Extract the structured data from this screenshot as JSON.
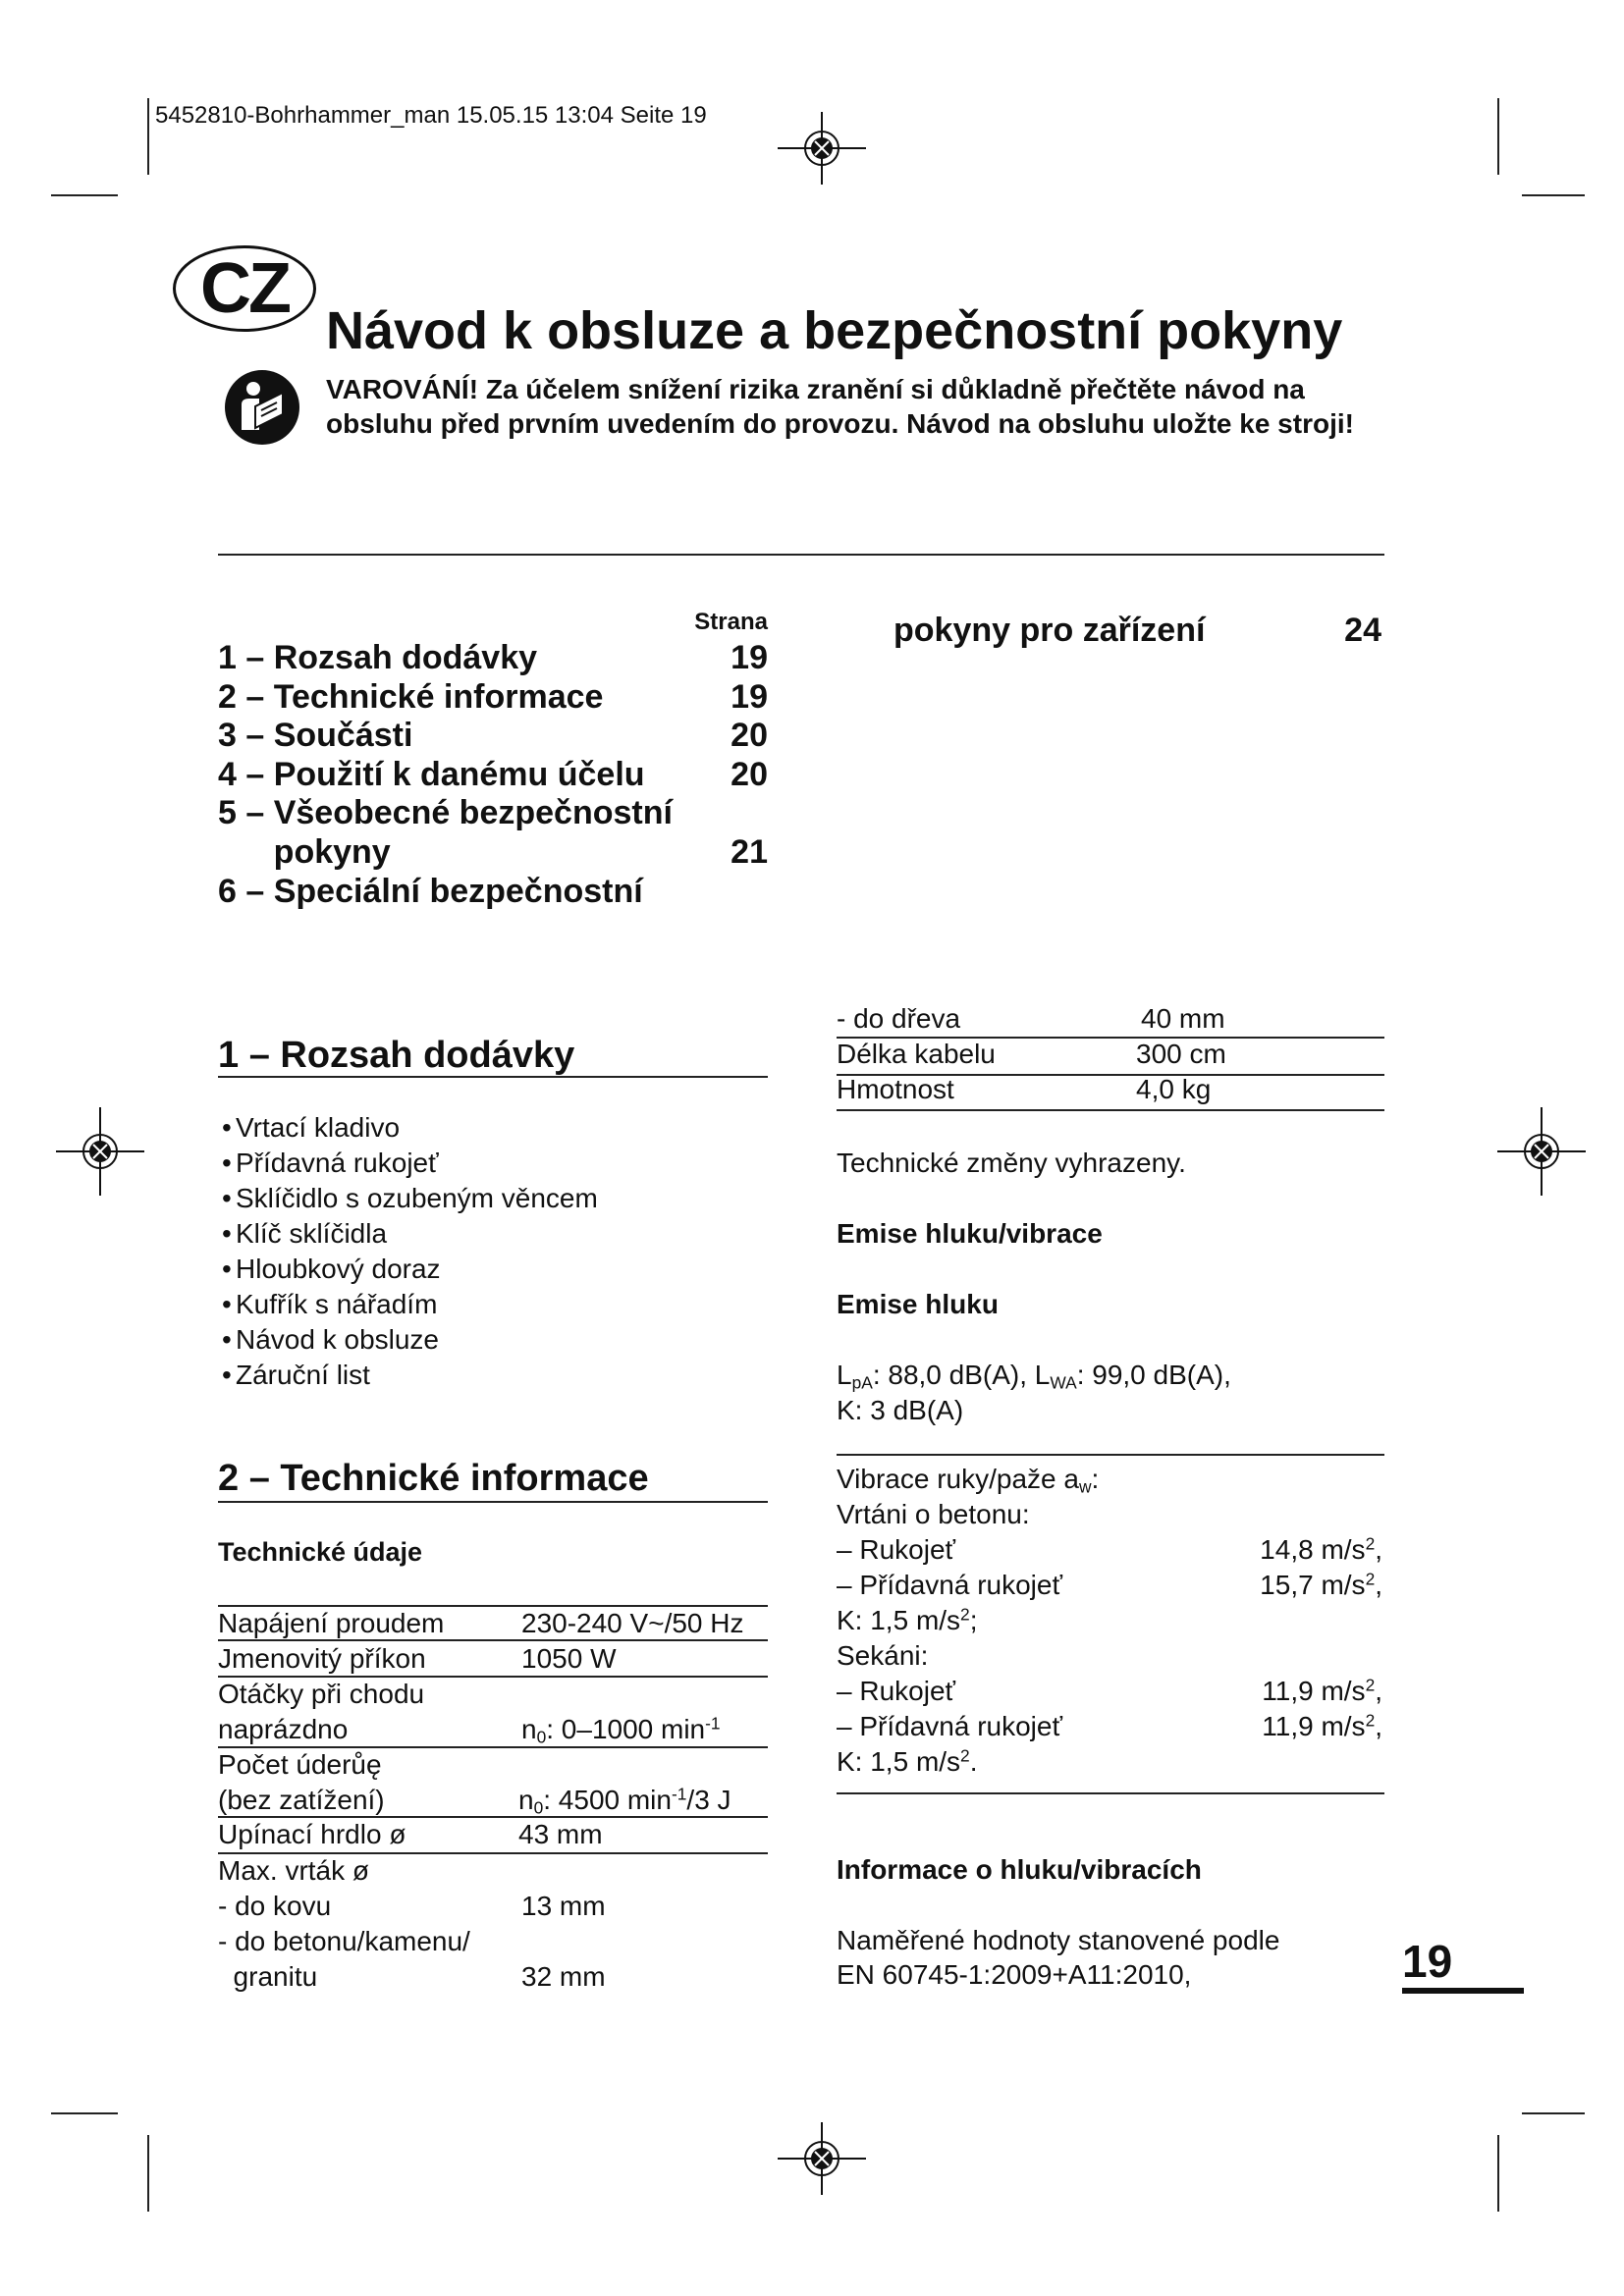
{
  "print_header": "5452810-Bohrhammer_man  15.05.15  13:04  Seite 19",
  "country_badge": "CZ",
  "title": "Návod k obsluze a bezpečnostní pokyny",
  "warning": {
    "icon": "read-manual-icon",
    "line1": "VAROVÁNÍ! Za účelem snížení rizika zranění si důkladně přečtěte návod na",
    "line2": "obsluhu před prvním uvedením do provozu. Návod na obsluhu uložte ke stroji!"
  },
  "toc": {
    "page_header": "Strana",
    "items": [
      {
        "label": "1 – Rozsah dodávky",
        "page": "19"
      },
      {
        "label": "2 – Technické informace",
        "page": "19"
      },
      {
        "label": "3 – Součásti",
        "page": "20"
      },
      {
        "label": "4 – Použití k danému účelu",
        "page": "20"
      },
      {
        "label": "5 – Všeobecné bezpečnostní",
        "page": ""
      },
      {
        "label": "      pokyny",
        "page": "21"
      },
      {
        "label": "6 – Speciální bezpečnostní",
        "page": ""
      }
    ],
    "continued": {
      "label": "pokyny pro zařízení",
      "page": "24"
    }
  },
  "section1": {
    "heading": "1 – Rozsah dodávky",
    "items": [
      "Vrtací kladivo",
      "Přídavná rukojeť",
      "Sklíčidlo s ozubeným věncem",
      "Klíč sklíčidla",
      "Hloubkový doraz",
      "Kufřík s nářadím",
      "Návod k obsluze",
      "Záruční list"
    ]
  },
  "section2": {
    "heading": "2 – Technické informace",
    "subheading": "Technické údaje",
    "table": [
      {
        "label": [
          "Napájení proudem"
        ],
        "value": [
          {
            "t": "230-240 V~/50 Hz"
          }
        ]
      },
      {
        "label": [
          "Jmenovitý příkon"
        ],
        "value": [
          {
            "t": "1050 W"
          }
        ]
      },
      {
        "label": [
          "Otáčky při chodu",
          "naprázdno"
        ],
        "value": [
          {
            "t": "n"
          },
          {
            "t": "0",
            "s": "sub"
          },
          {
            "t": ": 0–1000 min"
          },
          {
            "t": "-1",
            "s": "sup"
          }
        ]
      },
      {
        "label": [
          "Počet úderůę",
          "(bez zatížení)"
        ],
        "value": [
          {
            "t": "n"
          },
          {
            "t": "0",
            "s": "sub"
          },
          {
            "t": ": 4500 min"
          },
          {
            "t": "-1",
            "s": "sup"
          },
          {
            "t": "/3 J"
          }
        ]
      },
      {
        "label": [
          "Upínací hrdlo ø"
        ],
        "value": [
          {
            "t": "43 mm"
          }
        ]
      },
      {
        "label": [
          "Max. vrták ø",
          "- do kovu"
        ],
        "value": [
          {
            "t": "13 mm"
          }
        ]
      },
      {
        "label": [
          "- do betonu/kamenu/",
          "  granitu"
        ],
        "value": [
          {
            "t": "32 mm"
          }
        ]
      }
    ],
    "table_cont": [
      {
        "label": "- do dřeva",
        "value": "40 mm"
      },
      {
        "label": "Délka kabelu",
        "value": "300 cm"
      },
      {
        "label": "Hmotnost",
        "value": "4,0 kg"
      }
    ]
  },
  "right": {
    "changes": "Technické změny vyhrazeny.",
    "noise_vib_heading": "Emise hluku/vibrace",
    "noise_heading": "Emise hluku",
    "noise_line1": [
      {
        "t": "L"
      },
      {
        "t": "pA",
        "s": "sub"
      },
      {
        "t": ": 88,0 dB(A), L"
      },
      {
        "t": "WA",
        "s": "sub"
      },
      {
        "t": ": 99,0 dB(A),"
      }
    ],
    "noise_line2": "K: 3 dB(A)",
    "vibration": [
      {
        "label": [
          {
            "t": "Vibrace ruky/paže a"
          },
          {
            "t": "w",
            "s": "sub"
          },
          {
            "t": ":"
          }
        ],
        "value": []
      },
      {
        "label": [
          {
            "t": "Vrtáni o betonu:"
          }
        ],
        "value": []
      },
      {
        "label": [
          {
            "t": "– Rukojeť"
          }
        ],
        "value": [
          {
            "t": "14,8 m/s"
          },
          {
            "t": "2",
            "s": "sup"
          },
          {
            "t": ","
          }
        ]
      },
      {
        "label": [
          {
            "t": "– Přídavná rukojeť"
          }
        ],
        "value": [
          {
            "t": "15,7 m/s"
          },
          {
            "t": "2",
            "s": "sup"
          },
          {
            "t": ","
          }
        ]
      },
      {
        "label": [
          {
            "t": "K: 1,5 m/s"
          },
          {
            "t": "2",
            "s": "sup"
          },
          {
            "t": ";"
          }
        ],
        "value": []
      },
      {
        "label": [
          {
            "t": "Sekáni:"
          }
        ],
        "value": []
      },
      {
        "label": [
          {
            "t": "– Rukojeť"
          }
        ],
        "value": [
          {
            "t": "11,9 m/s"
          },
          {
            "t": "2",
            "s": "sup"
          },
          {
            "t": ","
          }
        ]
      },
      {
        "label": [
          {
            "t": "– Přídavná rukojeť"
          }
        ],
        "value": [
          {
            "t": "11,9 m/s"
          },
          {
            "t": "2",
            "s": "sup"
          },
          {
            "t": ","
          }
        ]
      },
      {
        "label": [
          {
            "t": "K: 1,5 m/s"
          },
          {
            "t": "2",
            "s": "sup"
          },
          {
            "t": "."
          }
        ],
        "value": []
      }
    ],
    "info_heading": "Informace o hluku/vibracích",
    "measured_line1": "Naměřené hodnoty stanovené podle",
    "measured_line2": "EN 60745-1:2009+A11:2010,"
  },
  "page_number": "19"
}
